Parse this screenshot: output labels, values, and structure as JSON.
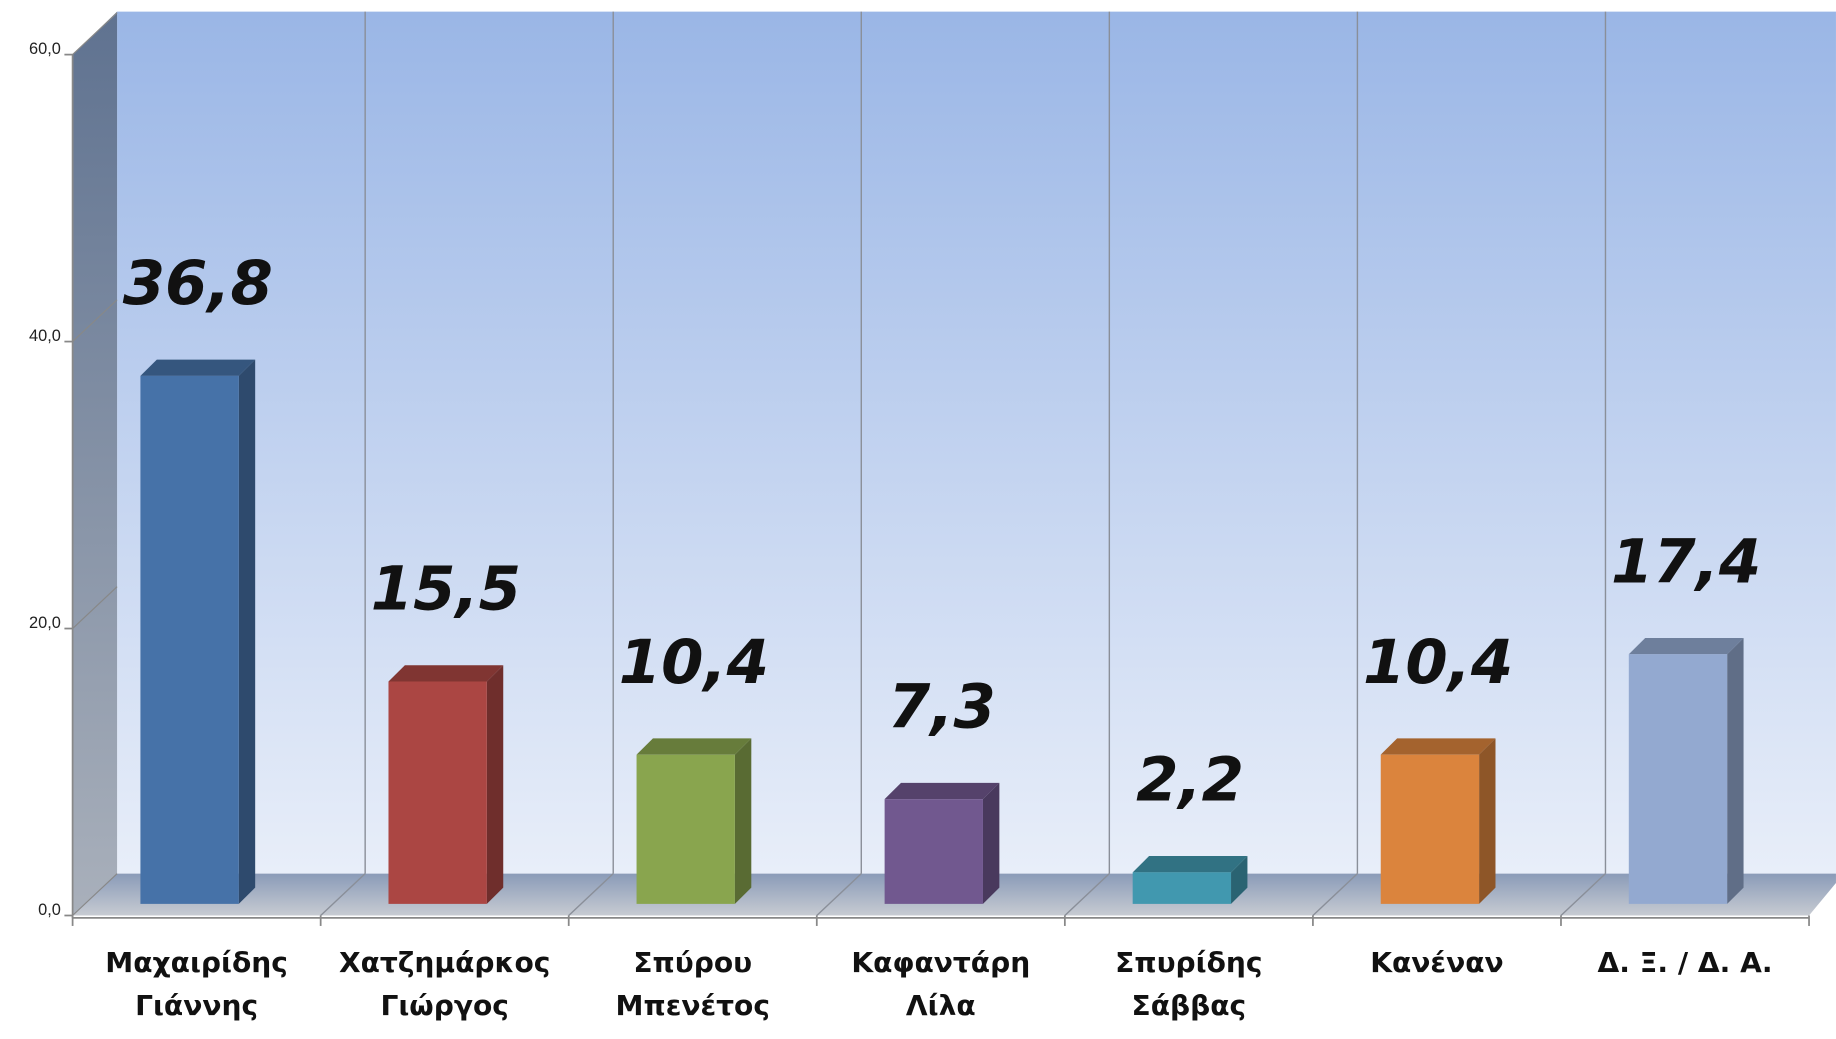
{
  "chart_data": {
    "type": "bar3d",
    "categories": [
      "Μαχαιρίδης\nΓιάννης",
      "Χατζημάρκος\nΓιώργος",
      "Σπύρου\nΜπενέτος",
      "Καφαντάρη\nΛίλα",
      "Σπυρίδης\nΣάββας",
      "Κανέναν",
      "Δ. Ξ. / Δ. Α."
    ],
    "values": [
      36.8,
      15.5,
      10.4,
      7.3,
      2.2,
      10.4,
      17.4
    ],
    "value_labels": [
      "36,8",
      "15,5",
      "10,4",
      "7,3",
      "2,2",
      "10,4",
      "17,4"
    ],
    "colors": [
      "#4672a8",
      "#ab4643",
      "#89a54e",
      "#71588f",
      "#4198af",
      "#db843d",
      "#93a9d0"
    ],
    "ylim": [
      0,
      60
    ],
    "yticks": [
      {
        "value": 0,
        "label": "0,0"
      },
      {
        "value": 20,
        "label": "20,0"
      },
      {
        "value": 40,
        "label": "40,0"
      },
      {
        "value": 60,
        "label": "60,0"
      }
    ]
  }
}
